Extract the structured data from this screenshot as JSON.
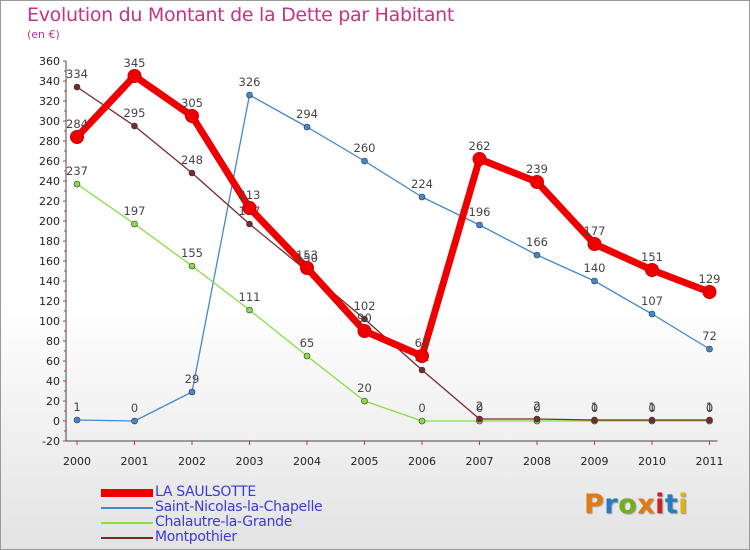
{
  "chart_data": {
    "type": "line",
    "title": "Evolution du Montant de la Dette par Habitant",
    "subtitle": "(en €)",
    "x": [
      "2000",
      "2001",
      "2002",
      "2003",
      "2004",
      "2005",
      "2006",
      "2007",
      "2008",
      "2009",
      "2010",
      "2011"
    ],
    "ylim": [
      -20,
      360
    ],
    "yticks": [
      -20,
      0,
      20,
      40,
      60,
      80,
      100,
      120,
      140,
      160,
      180,
      200,
      220,
      240,
      260,
      280,
      300,
      320,
      340,
      360
    ],
    "grid": false,
    "legend_position": "bottom-left",
    "series": [
      {
        "name": "LA SAULSOTTE",
        "color": "#ee0000",
        "values": [
          284,
          345,
          305,
          213,
          153,
          90,
          65,
          262,
          239,
          177,
          151,
          129
        ]
      },
      {
        "name": "Saint-Nicolas-la-Chapelle",
        "color": "#4488cc",
        "values": [
          1,
          0,
          29,
          326,
          294,
          260,
          224,
          196,
          166,
          140,
          107,
          72
        ]
      },
      {
        "name": "Chalautre-la-Grande",
        "color": "#88dd44",
        "values": [
          237,
          197,
          155,
          111,
          65,
          20,
          0,
          0,
          0,
          0,
          0,
          0
        ]
      },
      {
        "name": "Montpothier",
        "color": "#7a2a2a",
        "values": [
          334,
          295,
          248,
          197,
          150,
          102,
          51,
          2,
          2,
          1,
          1,
          1
        ]
      }
    ]
  },
  "brand": {
    "name": "Proxiti",
    "colors": [
      "#e07a10",
      "#2a7ac0",
      "#70b020",
      "#e07a10",
      "#d02020",
      "#2a7ac0",
      "#e0b010"
    ]
  }
}
